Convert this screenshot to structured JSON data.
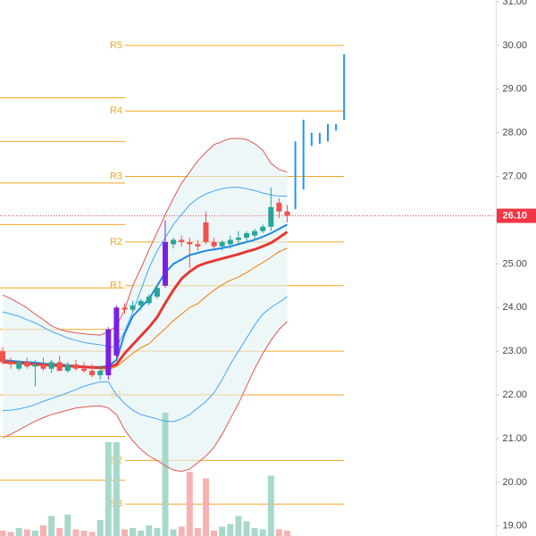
{
  "chart_data": {
    "type": "candlestick",
    "ylim": [
      18.77,
      31.04
    ],
    "yticks": [
      {
        "value": 19,
        "label": "19.00"
      },
      {
        "value": 20,
        "label": "20.00"
      },
      {
        "value": 21,
        "label": "21.00"
      },
      {
        "value": 22,
        "label": "22.00"
      },
      {
        "value": 23,
        "label": "23.00"
      },
      {
        "value": 24,
        "label": "24.00"
      },
      {
        "value": 25,
        "label": "25.00"
      },
      {
        "value": 26,
        "label": "26.00"
      },
      {
        "value": 27,
        "label": "27.00"
      },
      {
        "value": 28,
        "label": "28.00"
      },
      {
        "value": 29,
        "label": "29.00"
      },
      {
        "value": 30,
        "label": "30.00"
      },
      {
        "value": 31,
        "label": "31.00"
      }
    ],
    "candles": {
      "open": [
        23.0,
        22.75,
        22.6,
        22.75,
        22.65,
        22.7,
        22.6,
        22.75,
        22.55,
        22.7,
        22.6,
        22.55,
        22.45,
        22.45,
        22.9,
        24.0,
        23.95,
        24.05,
        24.1,
        24.25,
        24.5,
        25.45,
        25.55,
        25.5,
        25.45,
        25.95,
        25.5,
        25.4,
        25.45,
        25.55,
        25.6,
        25.65,
        25.75,
        25.85,
        26.4,
        26.2
      ],
      "high": [
        23.1,
        22.85,
        22.8,
        22.85,
        22.8,
        22.85,
        22.8,
        22.9,
        22.75,
        22.8,
        22.75,
        22.7,
        22.65,
        23.55,
        24.05,
        24.1,
        24.15,
        24.2,
        24.3,
        24.5,
        26.0,
        25.6,
        25.65,
        25.6,
        25.55,
        26.2,
        25.6,
        25.55,
        25.65,
        25.75,
        25.75,
        25.8,
        25.9,
        26.75,
        26.5,
        26.35
      ],
      "low": [
        22.7,
        22.6,
        22.55,
        22.6,
        22.2,
        22.55,
        22.5,
        22.55,
        22.5,
        22.55,
        22.5,
        22.4,
        22.35,
        22.35,
        22.85,
        23.85,
        23.9,
        23.95,
        24.05,
        24.2,
        24.45,
        25.35,
        25.4,
        24.9,
        25.3,
        25.45,
        25.35,
        25.3,
        25.35,
        25.45,
        25.5,
        25.55,
        25.7,
        25.75,
        26.05,
        25.95
      ],
      "close": [
        22.75,
        22.7,
        22.75,
        22.65,
        22.7,
        22.6,
        22.75,
        22.55,
        22.7,
        22.6,
        22.55,
        22.45,
        22.55,
        23.5,
        24.0,
        23.95,
        24.05,
        24.15,
        24.25,
        24.45,
        25.5,
        25.55,
        25.5,
        25.45,
        25.4,
        25.5,
        25.4,
        25.5,
        25.55,
        25.6,
        25.7,
        25.75,
        25.85,
        26.3,
        26.2,
        26.1
      ],
      "colors": [
        "#ef5350",
        "#ef5350",
        "#26a69a",
        "#ef5350",
        "#26a69a",
        "#ef5350",
        "#26a69a",
        "#ef5350",
        "#26a69a",
        "#ef5350",
        "#ef5350",
        "#ef5350",
        "#26a69a",
        "#7c1fe6",
        "#7c1fe6",
        "#ef5350",
        "#26a69a",
        "#26a69a",
        "#26a69a",
        "#26a69a",
        "#7c1fe6",
        "#26a69a",
        "#ef5350",
        "#ef5350",
        "#ef5350",
        "#ef5350",
        "#ef5350",
        "#26a69a",
        "#26a69a",
        "#26a69a",
        "#26a69a",
        "#26a69a",
        "#26a69a",
        "#26a69a",
        "#ef5350",
        "#ef5350"
      ]
    },
    "projection": {
      "color": "#2196f3",
      "low": [
        26.25,
        26.7,
        27.7,
        27.75,
        27.8,
        28.05,
        28.3
      ],
      "high": [
        27.8,
        28.3,
        28.0,
        28.0,
        28.2,
        28.2,
        29.8
      ]
    },
    "band_fill": "#e3f2f4",
    "lines": [
      {
        "color": "#e0584f",
        "width": 1,
        "values": [
          24.29,
          24.2,
          24.1,
          23.99,
          23.85,
          23.72,
          23.58,
          23.5,
          23.45,
          23.42,
          23.4,
          23.38,
          23.37,
          23.45,
          23.58,
          23.95,
          24.5,
          24.9,
          25.32,
          25.72,
          26.13,
          26.5,
          26.85,
          27.1,
          27.36,
          27.55,
          27.73,
          27.8,
          27.87,
          27.87,
          27.85,
          27.75,
          27.6,
          27.3,
          27.16,
          27.1
        ]
      },
      {
        "color": "#42a5f5",
        "width": 1,
        "values": [
          23.9,
          23.85,
          23.8,
          23.72,
          23.65,
          23.55,
          23.45,
          23.38,
          23.3,
          23.25,
          23.2,
          23.17,
          23.15,
          23.1,
          23.1,
          23.45,
          23.9,
          24.4,
          24.9,
          25.3,
          25.6,
          25.9,
          26.13,
          26.35,
          26.5,
          26.6,
          26.67,
          26.72,
          26.75,
          26.75,
          26.72,
          26.68,
          26.62,
          26.58,
          26.55,
          26.55
        ]
      },
      {
        "color": "#1e88e5",
        "width": 2,
        "values": [
          22.8,
          22.78,
          22.76,
          22.75,
          22.74,
          22.72,
          22.7,
          22.7,
          22.68,
          22.66,
          22.65,
          22.64,
          22.64,
          22.66,
          22.8,
          23.4,
          23.8,
          24.0,
          24.2,
          24.5,
          24.8,
          25.0,
          25.1,
          25.2,
          25.25,
          25.3,
          25.33,
          25.36,
          25.4,
          25.45,
          25.5,
          25.55,
          25.62,
          25.7,
          25.8,
          25.9
        ]
      },
      {
        "color": "#42a5f5",
        "width": 1,
        "values": [
          21.64,
          21.65,
          21.68,
          21.72,
          21.78,
          21.85,
          21.92,
          21.98,
          22.05,
          22.12,
          22.2,
          22.25,
          22.3,
          22.3,
          22.0,
          21.8,
          21.65,
          21.55,
          21.5,
          21.45,
          21.4,
          21.39,
          21.45,
          21.55,
          21.7,
          21.85,
          22.05,
          22.35,
          22.7,
          23.0,
          23.3,
          23.6,
          23.85,
          24.0,
          24.12,
          24.25
        ]
      },
      {
        "color": "#e0584f",
        "width": 1,
        "values": [
          21.02,
          21.1,
          21.2,
          21.3,
          21.4,
          21.48,
          21.55,
          21.6,
          21.65,
          21.7,
          21.72,
          21.74,
          21.75,
          21.7,
          21.55,
          21.2,
          20.95,
          20.75,
          20.6,
          20.5,
          20.38,
          20.28,
          20.25,
          20.3,
          20.45,
          20.6,
          20.8,
          21.1,
          21.45,
          21.8,
          22.2,
          22.6,
          22.95,
          23.25,
          23.5,
          23.68
        ]
      },
      {
        "color": "#f57c00",
        "width": 1,
        "values": [
          null,
          null,
          null,
          null,
          null,
          null,
          null,
          null,
          null,
          null,
          null,
          null,
          22.55,
          22.58,
          22.65,
          22.8,
          22.95,
          23.08,
          23.17,
          23.35,
          23.52,
          23.7,
          23.85,
          24.0,
          24.09,
          24.25,
          24.4,
          24.52,
          24.62,
          24.7,
          24.8,
          24.92,
          25.03,
          25.15,
          25.28,
          25.36
        ]
      },
      {
        "color": "#e53935",
        "width": 3,
        "values": [
          22.75,
          22.74,
          22.73,
          22.72,
          22.7,
          22.69,
          22.68,
          22.67,
          22.66,
          22.65,
          22.64,
          22.63,
          22.62,
          22.63,
          22.7,
          22.95,
          23.15,
          23.35,
          23.55,
          23.78,
          24.1,
          24.4,
          24.66,
          24.82,
          24.95,
          25.02,
          25.07,
          25.12,
          25.17,
          25.22,
          25.28,
          25.33,
          25.4,
          25.48,
          25.6,
          25.73
        ]
      }
    ],
    "volume": {
      "vlim": [
        0,
        100
      ],
      "up_color": "#a8d8cc",
      "down_color": "#f6b3b2",
      "values": [
        4,
        3,
        6,
        5,
        4,
        8,
        15,
        6,
        16,
        5,
        4,
        3,
        12,
        70,
        70,
        5,
        6,
        4,
        8,
        6,
        92,
        5,
        7,
        48,
        6,
        43,
        4,
        7,
        9,
        15,
        11,
        6,
        5,
        45,
        5,
        4
      ]
    },
    "pivots": {
      "color": "#f5a623",
      "levels": [
        {
          "label": "R5",
          "value": 30.0
        },
        {
          "label": "R4",
          "value": 28.5
        },
        {
          "label": "R3",
          "value": 27.0
        },
        {
          "label": "R2",
          "value": 25.5
        },
        {
          "label": "R1",
          "value": 24.5
        },
        {
          "label": null,
          "value": 23.0
        },
        {
          "label": "S1",
          "value": 22.0
        },
        {
          "label": "S2",
          "value": 20.5
        },
        {
          "label": "S3",
          "value": 19.5
        }
      ],
      "previous": [
        28.8,
        27.8,
        26.85,
        25.9,
        24.45,
        23.5,
        23.0,
        22.0,
        21.05,
        20.05
      ]
    },
    "last_price": {
      "value": 26.1,
      "label": "26.10",
      "color": "#f23645"
    }
  }
}
